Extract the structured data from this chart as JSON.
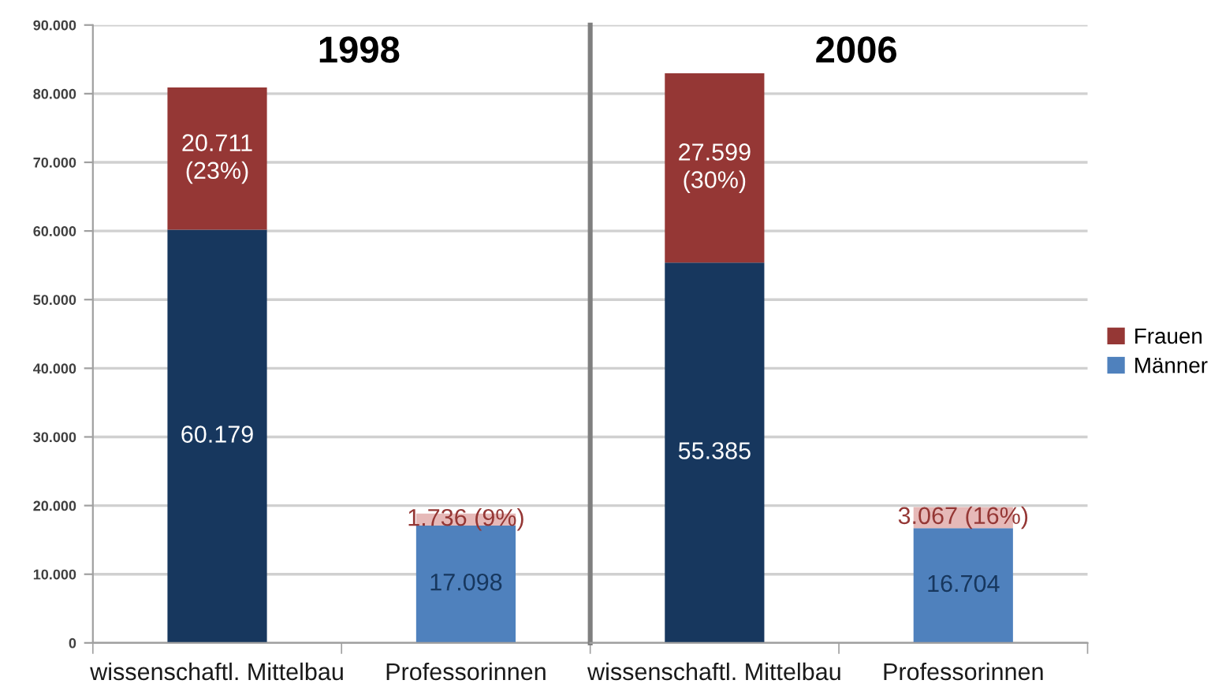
{
  "chart_data": [
    {
      "type": "bar",
      "stacked": true,
      "title": "1998",
      "categories": [
        "wissenschaftl. Mittelbau",
        "Professorinnen"
      ],
      "series": [
        {
          "colors": [
            "#17375e",
            "#4f81bd"
          ],
          "values": [
            60179,
            17098
          ],
          "value_labels": [
            "60.179",
            "17.098"
          ]
        },
        {
          "colors": [
            "#953735",
            "#e6b9b8"
          ],
          "values": [
            20711,
            1736
          ],
          "value_labels": [
            "20.711\n(23%)",
            "1.736 (9%)"
          ]
        }
      ],
      "ylim": [
        0,
        90000
      ],
      "yticks": [
        0,
        {
          "value": 10000,
          "label": "10.000"
        },
        {
          "value": 20000,
          "label": "20.000"
        },
        {
          "value": 30000,
          "label": "30.000"
        },
        {
          "value": 40000,
          "label": "40.000"
        },
        {
          "value": 50000,
          "label": "50.000"
        },
        {
          "value": 60000,
          "label": "60.000"
        },
        {
          "value": 70000,
          "label": "70.000"
        },
        {
          "value": 80000,
          "label": "80.000"
        },
        {
          "value": 90000,
          "label": "90.000"
        }
      ],
      "grid": "y"
    },
    {
      "type": "bar",
      "stacked": true,
      "title": "2006",
      "categories": [
        "wissenschaftl. Mittelbau",
        "Professorinnen"
      ],
      "series": [
        {
          "name": "Männer",
          "color": "#4f81bd",
          "colors": [
            "#17375e",
            "#4f81bd"
          ],
          "values": [
            55385,
            16704
          ],
          "value_labels": [
            "55.385",
            "16.704"
          ]
        },
        {
          "name": "Frauen",
          "color": "#953735",
          "colors": [
            "#953735",
            "#e6b9b8"
          ],
          "values": [
            27599,
            3067
          ],
          "value_labels": [
            "27.599\n(30%)",
            "3.067 (16%)"
          ]
        }
      ],
      "ylim": [
        0,
        90000
      ],
      "yticks": [
        0,
        10000,
        20000,
        30000,
        40000,
        50000,
        60000,
        70000,
        80000,
        90000
      ],
      "tick_labels": "x",
      "grid": "y",
      "legend": "right"
    }
  ]
}
